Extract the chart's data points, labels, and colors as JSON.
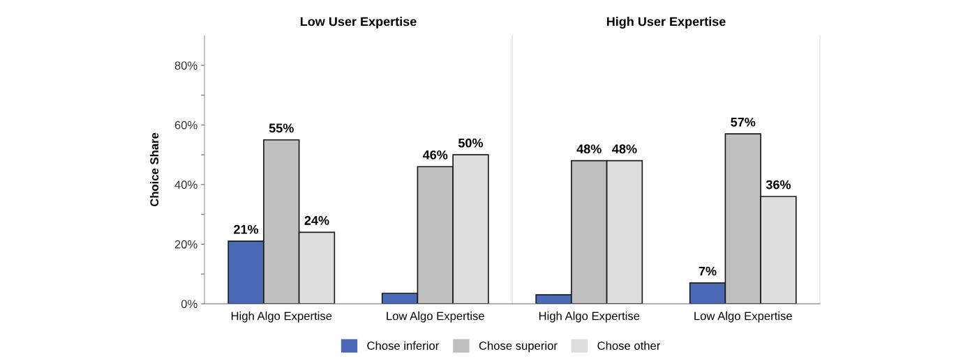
{
  "chart_data": [
    {
      "type": "bar",
      "title": "Low User Expertise",
      "ylabel": "Choice Share",
      "categories": [
        "High Algo Expertise",
        "Low Algo Expertise"
      ],
      "ylim": [
        0,
        90
      ],
      "yticks": [
        {
          "value": 0,
          "label": "0%"
        },
        {
          "value": 10,
          "label": null
        },
        {
          "value": 20,
          "label": "20%"
        },
        {
          "value": 30,
          "label": null
        },
        {
          "value": 40,
          "label": "40%"
        },
        {
          "value": 50,
          "label": null
        },
        {
          "value": 60,
          "label": "60%"
        },
        {
          "value": 70,
          "label": null
        },
        {
          "value": 80,
          "label": "80%"
        }
      ],
      "legend": "bottom",
      "grid": false,
      "series": [
        {
          "name": "Chose inferior",
          "color": "#4a6ab5",
          "values": [
            21,
            3.5
          ],
          "value_labels": [
            "21%",
            null
          ]
        },
        {
          "name": "Chose superior",
          "color": "#c0c0c0",
          "values": [
            55,
            46
          ],
          "value_labels": [
            "55%",
            "46%"
          ]
        },
        {
          "name": "Chose other",
          "color": "#dedede",
          "values": [
            24,
            50
          ],
          "value_labels": [
            "24%",
            "50%"
          ]
        }
      ]
    },
    {
      "type": "bar",
      "title": "High User Expertise",
      "categories": [
        "High Algo Expertise",
        "Low Algo Expertise"
      ],
      "ylim": [
        0,
        90
      ],
      "tick_labels": "x",
      "grid": false,
      "series": [
        {
          "color": "#4a6ab5",
          "values": [
            3,
            7
          ],
          "value_labels": [
            null,
            "7%"
          ]
        },
        {
          "color": "#c0c0c0",
          "values": [
            48,
            57
          ],
          "value_labels": [
            "48%",
            "57%"
          ]
        },
        {
          "color": "#dedede",
          "values": [
            48,
            36
          ],
          "value_labels": [
            "48%",
            "36%"
          ]
        }
      ]
    }
  ]
}
